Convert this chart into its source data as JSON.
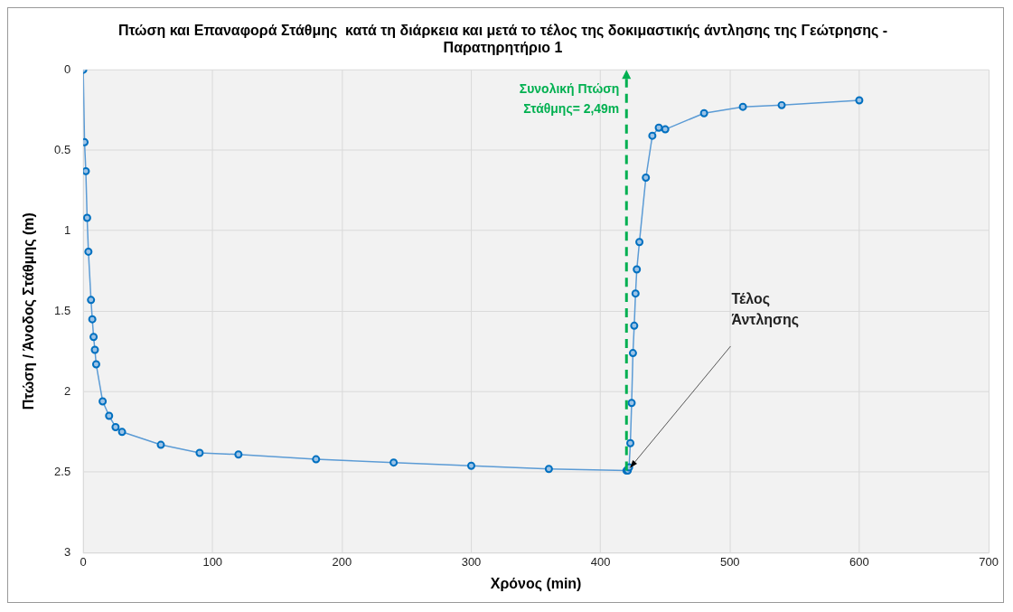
{
  "chart_data": {
    "type": "line",
    "title": "Πτώση και Επαναφορά Στάθμης  κατά τη διάρκεια και μετά το τέλος της δοκιμαστικής άντλησης της Γεώτρησης - Παρατηρητήριο 1",
    "xlabel": "Χρόνος (min)",
    "ylabel": "Πτώση / Άνοδος Στάθμης (m)",
    "series": [
      {
        "color": "#5b9bd5",
        "x": [
          0,
          1,
          2,
          3,
          4,
          6,
          7,
          8,
          9,
          10,
          15,
          20,
          25,
          30,
          60,
          90,
          120,
          180,
          240,
          300,
          360,
          420,
          421,
          422,
          423,
          424,
          425,
          426,
          427,
          428,
          430,
          435,
          440,
          445,
          450,
          480,
          510,
          540,
          600
        ],
        "values": [
          0,
          0.45,
          0.63,
          0.92,
          1.13,
          1.43,
          1.55,
          1.66,
          1.74,
          1.83,
          2.06,
          2.15,
          2.22,
          2.25,
          2.33,
          2.38,
          2.39,
          2.42,
          2.44,
          2.46,
          2.48,
          2.49,
          2.49,
          2.47,
          2.32,
          2.07,
          1.76,
          1.59,
          1.39,
          1.24,
          1.07,
          0.67,
          0.41,
          0.36,
          0.37,
          0.27,
          0.23,
          0.22,
          0.19
        ]
      }
    ],
    "xlim": [
      0,
      700
    ],
    "xticks": [
      0,
      100,
      200,
      300,
      400,
      500,
      600,
      700
    ],
    "ylim": [
      3,
      0
    ],
    "yticks": [
      0,
      0.5,
      1,
      1.5,
      2,
      2.5,
      3
    ],
    "annotations": [
      {
        "text": "Συνολική Πτώση Στάθμης= 2,49m",
        "x": 420,
        "y": 2.49
      },
      {
        "text": "Τέλος Άντλησης",
        "x": 421,
        "y": 2.49
      }
    ],
    "grid": true,
    "marker": "circle",
    "line_style": "solid",
    "legend": false
  }
}
